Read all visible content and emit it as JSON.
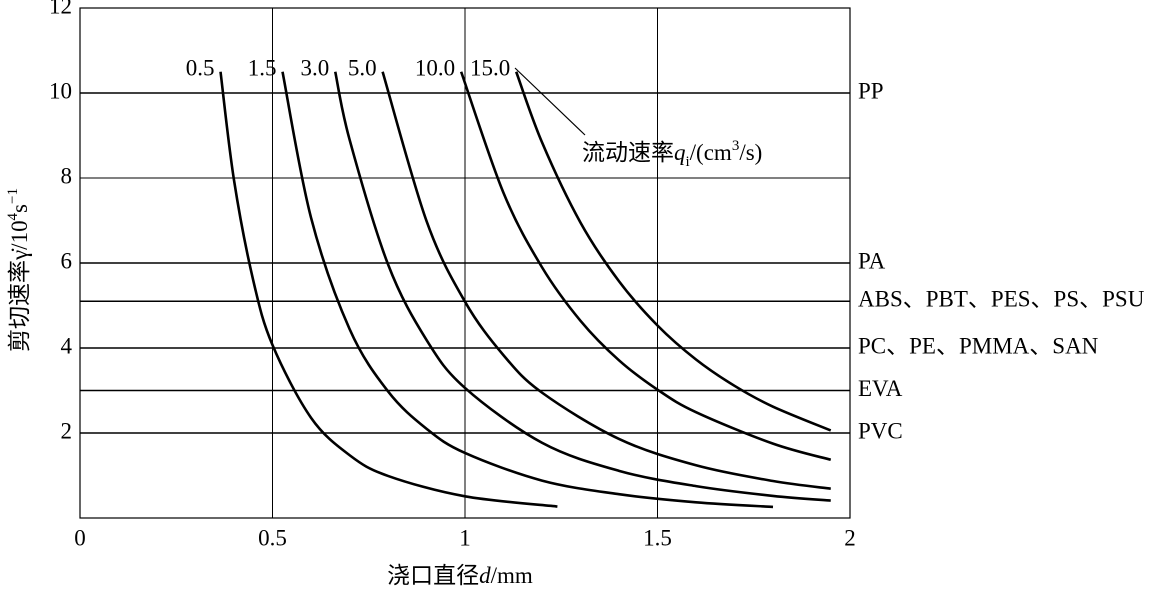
{
  "chart_data": {
    "type": "line",
    "x_label": {
      "text": "浇口直径",
      "var": "d",
      "unit": "/mm"
    },
    "y_label": {
      "text": "剪切速率γ̇/10",
      "sup1": "4",
      "mid": "s",
      "sup2": "−1"
    },
    "annotation": {
      "text": "流动速率",
      "var": "q",
      "sub": "i",
      "unit1": "/(cm",
      "sup": "3",
      "unit2": "/s)"
    },
    "xlim": [
      0,
      2
    ],
    "ylim": [
      0,
      12
    ],
    "xticks": [
      0,
      0.5,
      1,
      1.5,
      2
    ],
    "yticks": [
      2,
      4,
      6,
      8,
      10,
      12
    ],
    "grid": true,
    "series": [
      {
        "name": "0.5",
        "color": "#000000",
        "x": [
          0.365,
          0.4,
          0.45,
          0.5,
          0.6,
          0.7,
          0.8,
          1.0,
          1.24
        ],
        "values": [
          10.5,
          7.95,
          5.59,
          4.07,
          2.36,
          1.48,
          0.99,
          0.51,
          0.27
        ]
      },
      {
        "name": "1.5",
        "color": "#000000",
        "x": [
          0.526,
          0.6,
          0.7,
          0.8,
          0.9,
          1.0,
          1.2,
          1.4,
          1.6,
          1.8
        ],
        "values": [
          10.5,
          7.07,
          4.45,
          2.98,
          2.1,
          1.53,
          0.88,
          0.56,
          0.37,
          0.26
        ]
      },
      {
        "name": "3.0",
        "color": "#000000",
        "x": [
          0.663,
          0.7,
          0.8,
          0.9,
          1.0,
          1.2,
          1.4,
          1.6,
          1.8,
          1.95
        ],
        "values": [
          10.5,
          8.91,
          5.97,
          4.19,
          3.06,
          1.77,
          1.11,
          0.75,
          0.52,
          0.41
        ]
      },
      {
        "name": "5.0",
        "color": "#000000",
        "x": [
          0.786,
          0.9,
          1.0,
          1.1,
          1.2,
          1.4,
          1.6,
          1.8,
          1.95
        ],
        "values": [
          10.5,
          6.99,
          5.09,
          3.83,
          2.95,
          1.86,
          1.24,
          0.87,
          0.69
        ]
      },
      {
        "name": "10.0",
        "color": "#000000",
        "x": [
          0.99,
          1.1,
          1.2,
          1.3,
          1.4,
          1.5,
          1.6,
          1.8,
          1.95
        ],
        "values": [
          10.5,
          7.65,
          5.9,
          4.64,
          3.71,
          3.02,
          2.49,
          1.75,
          1.37
        ]
      },
      {
        "name": "15.0",
        "color": "#000000",
        "x": [
          1.133,
          1.2,
          1.3,
          1.4,
          1.5,
          1.6,
          1.7,
          1.8,
          1.95
        ],
        "values": [
          10.5,
          8.84,
          6.95,
          5.57,
          4.53,
          3.73,
          3.11,
          2.62,
          2.06
        ]
      }
    ],
    "reference_lines": [
      {
        "label": "PP",
        "value": 10
      },
      {
        "label": "PA",
        "value": 6
      },
      {
        "label": "ABS、PBT、PES、PS、PSU",
        "value": 5.1
      },
      {
        "label": "PC、PE、PMMA、SAN",
        "value": 4
      },
      {
        "label": "EVA",
        "value": 3
      },
      {
        "label": "PVC",
        "value": 2
      }
    ]
  }
}
